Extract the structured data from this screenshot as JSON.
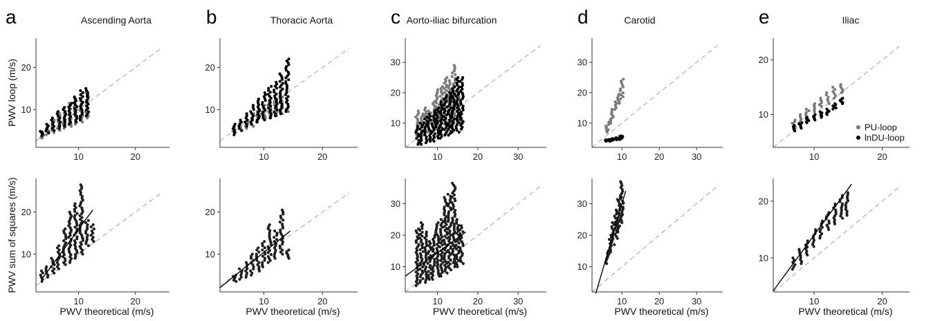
{
  "colors": {
    "pu": "#7a7a7a",
    "indu": "#000000",
    "sos": "#1e1e1e",
    "identity": "#b0b0b0"
  },
  "legend": {
    "pu": "PU-loop",
    "indu": "lnDU-loop"
  },
  "xlabel": "PWV theoretical (m/s)",
  "ylabel_top": "PWV loop (m/s)",
  "ylabel_bottom": "PWV sum of squares (m/s)",
  "chart_data": [
    {
      "panel": "a",
      "row": "top",
      "type": "scatter",
      "title": "Ascending Aorta",
      "xlim": [
        2.5,
        26
      ],
      "ylim": [
        1,
        27
      ],
      "xticks": [
        10,
        20
      ],
      "yticks": [
        10,
        20
      ],
      "identity_line": true,
      "series": [
        {
          "name": "PU-loop",
          "clusters": [
            [
              3.5,
              3.2,
              4.2
            ],
            [
              4.5,
              4.0,
              5.5
            ],
            [
              5.5,
              4.5,
              7.5
            ],
            [
              6.5,
              5.0,
              9.5
            ],
            [
              7.5,
              5.5,
              10.5
            ],
            [
              8.5,
              6.0,
              11.5
            ],
            [
              9.5,
              6.5,
              12.5
            ],
            [
              10.5,
              7.0,
              13.5
            ],
            [
              11.5,
              8.0,
              14.0
            ]
          ]
        },
        {
          "name": "lnDU-loop",
          "clusters": [
            [
              3.5,
              3.8,
              4.8
            ],
            [
              4.5,
              4.5,
              6.5
            ],
            [
              5.5,
              5.0,
              8.0
            ],
            [
              6.5,
              5.5,
              9.5
            ],
            [
              7.5,
              6.0,
              10.5
            ],
            [
              8.5,
              6.5,
              11.5
            ],
            [
              9.5,
              7.0,
              13.0
            ],
            [
              10.5,
              7.5,
              14.5
            ],
            [
              11.5,
              8.5,
              15.0
            ]
          ]
        }
      ]
    },
    {
      "panel": "b",
      "row": "top",
      "type": "scatter",
      "title": "Thoracic Aorta",
      "xlim": [
        2.5,
        26
      ],
      "ylim": [
        1,
        27
      ],
      "xticks": [
        10,
        20
      ],
      "yticks": [
        10,
        20
      ],
      "identity_line": true,
      "series": [
        {
          "name": "PU-loop",
          "clusters": [
            [
              5,
              4.5,
              6.0
            ],
            [
              6,
              5.0,
              7.0
            ],
            [
              7,
              5.5,
              8.0
            ],
            [
              8,
              6.0,
              9.0
            ],
            [
              9,
              7.0,
              10.0
            ],
            [
              10,
              7.5,
              11.0
            ],
            [
              11,
              8.0,
              12.0
            ],
            [
              12,
              8.5,
              12.5
            ],
            [
              13,
              9.0,
              13.0
            ],
            [
              14,
              9.5,
              10.0
            ]
          ]
        },
        {
          "name": "lnDU-loop",
          "clusters": [
            [
              5,
              4.0,
              6.5
            ],
            [
              6,
              5.0,
              7.5
            ],
            [
              7,
              6.0,
              9.0
            ],
            [
              8,
              6.5,
              11.0
            ],
            [
              9,
              7.0,
              12.5
            ],
            [
              10,
              7.5,
              14.0
            ],
            [
              11,
              8.0,
              15.5
            ],
            [
              12,
              8.5,
              16.5
            ],
            [
              13,
              9.0,
              18.5
            ],
            [
              14,
              9.5,
              22.0
            ]
          ]
        }
      ]
    },
    {
      "panel": "c",
      "row": "top",
      "type": "scatter",
      "title": "Aorto-iliac bifurcation",
      "xlim": [
        2,
        37
      ],
      "ylim": [
        2,
        38
      ],
      "xticks": [
        10,
        20,
        30
      ],
      "yticks": [
        10,
        20,
        30
      ],
      "identity_line": true,
      "series": [
        {
          "name": "PU-loop",
          "clusters": [
            [
              5,
              6.0,
              14.0
            ],
            [
              6,
              6.0,
              13.0
            ],
            [
              7,
              7.0,
              15.0
            ],
            [
              8,
              7.0,
              14.0
            ],
            [
              9,
              8.0,
              17.0
            ],
            [
              10,
              8.0,
              21.0
            ],
            [
              11,
              8.0,
              22.0
            ],
            [
              12,
              9.0,
              25.0
            ],
            [
              13,
              9.0,
              24.0
            ],
            [
              14,
              10.0,
              29.0
            ],
            [
              15,
              10.0,
              20.0
            ],
            [
              16,
              10.0,
              12.0
            ]
          ]
        },
        {
          "name": "lnDU-loop",
          "clusters": [
            [
              5,
              3.0,
              9.0
            ],
            [
              6,
              3.0,
              10.0
            ],
            [
              7,
              3.5,
              12.0
            ],
            [
              8,
              4.0,
              13.0
            ],
            [
              9,
              4.0,
              14.0
            ],
            [
              10,
              5.0,
              15.0
            ],
            [
              11,
              5.0,
              17.0
            ],
            [
              12,
              6.0,
              19.0
            ],
            [
              13,
              6.0,
              20.0
            ],
            [
              14,
              7.0,
              22.0
            ],
            [
              15,
              7.0,
              25.0
            ],
            [
              16,
              8.0,
              25.0
            ]
          ]
        }
      ]
    },
    {
      "panel": "d",
      "row": "top",
      "type": "scatter",
      "title": "Carotid",
      "xlim": [
        2,
        37
      ],
      "ylim": [
        2,
        38
      ],
      "xticks": [
        10,
        20,
        30
      ],
      "yticks": [
        10,
        20,
        30
      ],
      "identity_line": true,
      "series": [
        {
          "name": "PU-loop",
          "clusters": [
            [
              6,
              7.0,
              9.0
            ],
            [
              6.8,
              9.5,
              11.5
            ],
            [
              7.6,
              12.0,
              14.5
            ],
            [
              8.4,
              14.5,
              17.0
            ],
            [
              9.2,
              16.5,
              19.5
            ],
            [
              10,
              18.0,
              24.5
            ]
          ]
        },
        {
          "name": "lnDU-loop",
          "clusters": [
            [
              5.5,
              4.0,
              4.5
            ],
            [
              6.5,
              4.0,
              4.6
            ],
            [
              7.5,
              4.2,
              4.9
            ],
            [
              8.5,
              4.5,
              5.2
            ],
            [
              9.5,
              4.6,
              5.6
            ],
            [
              10,
              4.8,
              5.8
            ]
          ]
        }
      ]
    },
    {
      "panel": "e",
      "row": "top",
      "type": "scatter",
      "title": "Iliac",
      "xlim": [
        4,
        24
      ],
      "ylim": [
        4,
        24
      ],
      "xticks": [
        10,
        20
      ],
      "yticks": [
        10,
        20
      ],
      "identity_line": true,
      "legend_position": "right",
      "series": [
        {
          "name": "PU-loop",
          "clusters": [
            [
              7,
              7.5,
              9.0
            ],
            [
              8,
              8.5,
              10.0
            ],
            [
              9,
              9.5,
              11.0
            ],
            [
              10,
              10.5,
              12.0
            ],
            [
              11,
              11.5,
              13.0
            ],
            [
              12,
              12.0,
              14.0
            ],
            [
              13,
              13.0,
              15.0
            ],
            [
              14,
              14.0,
              15.5
            ]
          ]
        },
        {
          "name": "lnDU-loop",
          "clusters": [
            [
              7,
              7.0,
              8.0
            ],
            [
              8,
              7.5,
              8.5
            ],
            [
              9,
              8.5,
              9.5
            ],
            [
              10,
              9.0,
              10.0
            ],
            [
              11,
              9.5,
              10.5
            ],
            [
              12,
              10.0,
              11.0
            ],
            [
              13,
              11.0,
              12.0
            ],
            [
              14,
              12.0,
              13.0
            ]
          ]
        }
      ]
    },
    {
      "panel": "a",
      "row": "bottom",
      "type": "scatter",
      "xlim": [
        2.5,
        26
      ],
      "ylim": [
        1,
        28
      ],
      "xticks": [
        10,
        20
      ],
      "yticks": [
        10,
        20
      ],
      "identity_line": true,
      "fit": [
        [
          3.5,
          4.0
        ],
        [
          12.5,
          20.5
        ]
      ],
      "series": [
        {
          "name": "",
          "clusters": [
            [
              3.5,
              3.5,
              6.0
            ],
            [
              4.5,
              4.5,
              7.0
            ],
            [
              5.5,
              5.5,
              9.0
            ],
            [
              6.5,
              6.5,
              12.0
            ],
            [
              7.5,
              7.5,
              16.0
            ],
            [
              8.5,
              8.0,
              20.0
            ],
            [
              9.5,
              9.0,
              22.0
            ],
            [
              10.5,
              10.0,
              26.5
            ],
            [
              11.5,
              12.0,
              18.0
            ],
            [
              12.5,
              13.0,
              17.0
            ]
          ]
        }
      ]
    },
    {
      "panel": "b",
      "row": "bottom",
      "type": "scatter",
      "xlim": [
        2.5,
        26
      ],
      "ylim": [
        1,
        28
      ],
      "xticks": [
        10,
        20
      ],
      "yticks": [
        10,
        20
      ],
      "identity_line": true,
      "fit": [
        [
          2.5,
          2.0
        ],
        [
          14.5,
          15.5
        ]
      ],
      "series": [
        {
          "name": "",
          "clusters": [
            [
              5,
              3.5,
              5.0
            ],
            [
              6,
              4.0,
              6.5
            ],
            [
              7,
              4.5,
              8.0
            ],
            [
              8,
              5.0,
              10.0
            ],
            [
              9,
              6.0,
              11.5
            ],
            [
              10,
              7.0,
              13.0
            ],
            [
              11,
              8.0,
              17.0
            ],
            [
              12,
              9.0,
              15.5
            ],
            [
              13,
              10.0,
              20.5
            ],
            [
              14,
              9.0,
              11.0
            ]
          ]
        }
      ]
    },
    {
      "panel": "c",
      "row": "bottom",
      "type": "scatter",
      "xlim": [
        2,
        37
      ],
      "ylim": [
        2,
        38
      ],
      "xticks": [
        10,
        20,
        30
      ],
      "yticks": [
        10,
        20,
        30
      ],
      "identity_line": true,
      "fit": [
        [
          2,
          7.0
        ],
        [
          17,
          21.0
        ]
      ],
      "series": [
        {
          "name": "",
          "clusters": [
            [
              5,
              4.0,
              22.0
            ],
            [
              6,
              5.0,
              24.0
            ],
            [
              7,
              5.0,
              21.0
            ],
            [
              8,
              6.0,
              18.0
            ],
            [
              9,
              6.0,
              20.0
            ],
            [
              10,
              7.0,
              24.0
            ],
            [
              11,
              7.0,
              25.0
            ],
            [
              12,
              8.0,
              32.0
            ],
            [
              13,
              9.0,
              33.0
            ],
            [
              14,
              10.0,
              36.5
            ],
            [
              15,
              10.0,
              25.0
            ],
            [
              16,
              11.0,
              23.0
            ]
          ]
        }
      ]
    },
    {
      "panel": "d",
      "row": "bottom",
      "type": "scatter",
      "xlim": [
        2,
        37
      ],
      "ylim": [
        2,
        38
      ],
      "xticks": [
        10,
        20,
        30
      ],
      "yticks": [
        10,
        20,
        30
      ],
      "identity_line": true,
      "fit": [
        [
          3.0,
          1.5
        ],
        [
          11.0,
          34.0
        ]
      ],
      "series": [
        {
          "name": "",
          "clusters": [
            [
              6,
              11.0,
              15.0
            ],
            [
              6.8,
              14.0,
              20.0
            ],
            [
              7.6,
              17.0,
              24.0
            ],
            [
              8.4,
              19.0,
              28.0
            ],
            [
              9.2,
              21.0,
              32.0
            ],
            [
              10,
              24.0,
              37.0
            ]
          ]
        }
      ]
    },
    {
      "panel": "e",
      "row": "bottom",
      "type": "scatter",
      "xlim": [
        4,
        24
      ],
      "ylim": [
        4,
        24
      ],
      "xticks": [
        10,
        20
      ],
      "yticks": [
        10,
        20
      ],
      "identity_line": true,
      "fit": [
        [
          4,
          4.2
        ],
        [
          15.5,
          23.0
        ]
      ],
      "series": [
        {
          "name": "",
          "clusters": [
            [
              7,
              8.0,
              10.0
            ],
            [
              8,
              9.0,
              11.5
            ],
            [
              9,
              10.5,
              13.0
            ],
            [
              10,
              12.0,
              15.0
            ],
            [
              11,
              13.5,
              16.5
            ],
            [
              12,
              15.0,
              18.0
            ],
            [
              13,
              16.0,
              19.5
            ],
            [
              14,
              17.0,
              21.0
            ],
            [
              14.8,
              17.5,
              21.5
            ]
          ]
        }
      ]
    }
  ]
}
